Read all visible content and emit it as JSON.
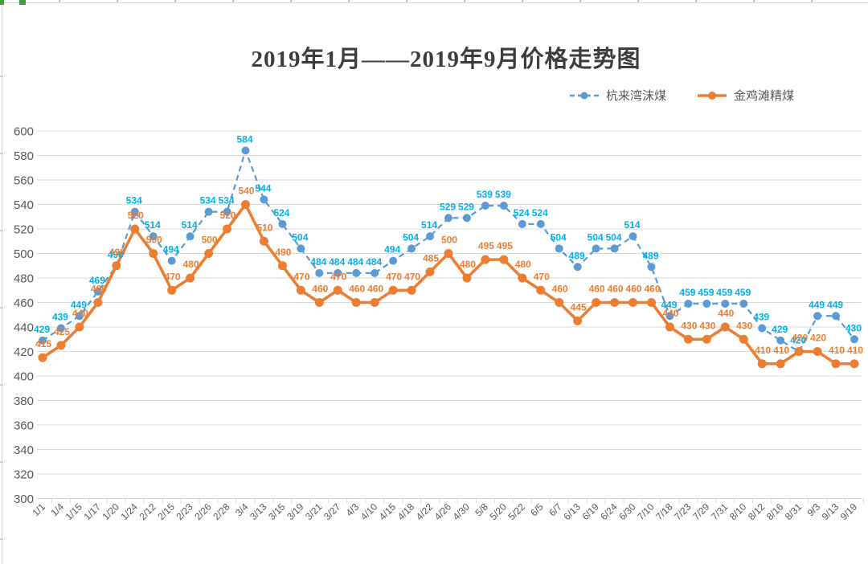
{
  "chart_data": {
    "type": "line",
    "title": "2019年1月——2019年9月价格走势图",
    "xlabel": "",
    "ylabel": "",
    "grid": true,
    "legend_position": "top-right",
    "ylim": [
      300,
      600
    ],
    "y_ticks": [
      300,
      320,
      340,
      360,
      380,
      400,
      420,
      440,
      460,
      480,
      500,
      520,
      540,
      560,
      580,
      600
    ],
    "categories": [
      "1/1",
      "1/4",
      "1/15",
      "1/17",
      "1/20",
      "1/24",
      "2/12",
      "2/15",
      "2/23",
      "2/26",
      "2/28",
      "3/4",
      "3/13",
      "3/15",
      "3/19",
      "3/21",
      "3/27",
      "4/3",
      "4/10",
      "4/15",
      "4/18",
      "4/22",
      "4/26",
      "4/30",
      "5/8",
      "5/20",
      "5/22",
      "6/5",
      "6/7",
      "6/13",
      "6/19",
      "6/24",
      "6/30",
      "7/10",
      "7/18",
      "7/23",
      "7/29",
      "7/31",
      "8/10",
      "8/12",
      "8/16",
      "8/31",
      "9/3",
      "9/13",
      "9/19"
    ],
    "series": [
      {
        "name": "杭来湾沫煤",
        "color": "#5B9BD5",
        "label_color": "#00B0F0",
        "line_style": "dashed",
        "values": [
          429,
          439,
          449,
          469,
          490,
          534,
          514,
          494,
          514,
          534,
          534,
          584,
          544,
          524,
          504,
          484,
          484,
          484,
          484,
          494,
          504,
          514,
          529,
          529,
          539,
          539,
          524,
          524,
          504,
          489,
          504,
          504,
          514,
          489,
          449,
          459,
          459,
          459,
          459,
          439,
          429,
          420,
          449,
          449,
          430
        ]
      },
      {
        "name": "金鸡滩精煤",
        "color": "#ED7D31",
        "label_color": "#ED7D31",
        "line_style": "solid",
        "values": [
          415,
          425,
          440,
          460,
          490,
          520,
          500,
          470,
          480,
          500,
          520,
          540,
          510,
          490,
          470,
          460,
          470,
          460,
          460,
          470,
          470,
          485,
          500,
          480,
          495,
          495,
          480,
          470,
          460,
          445,
          460,
          460,
          460,
          460,
          440,
          430,
          430,
          440,
          430,
          410,
          410,
          420,
          420,
          410,
          410
        ]
      }
    ]
  }
}
